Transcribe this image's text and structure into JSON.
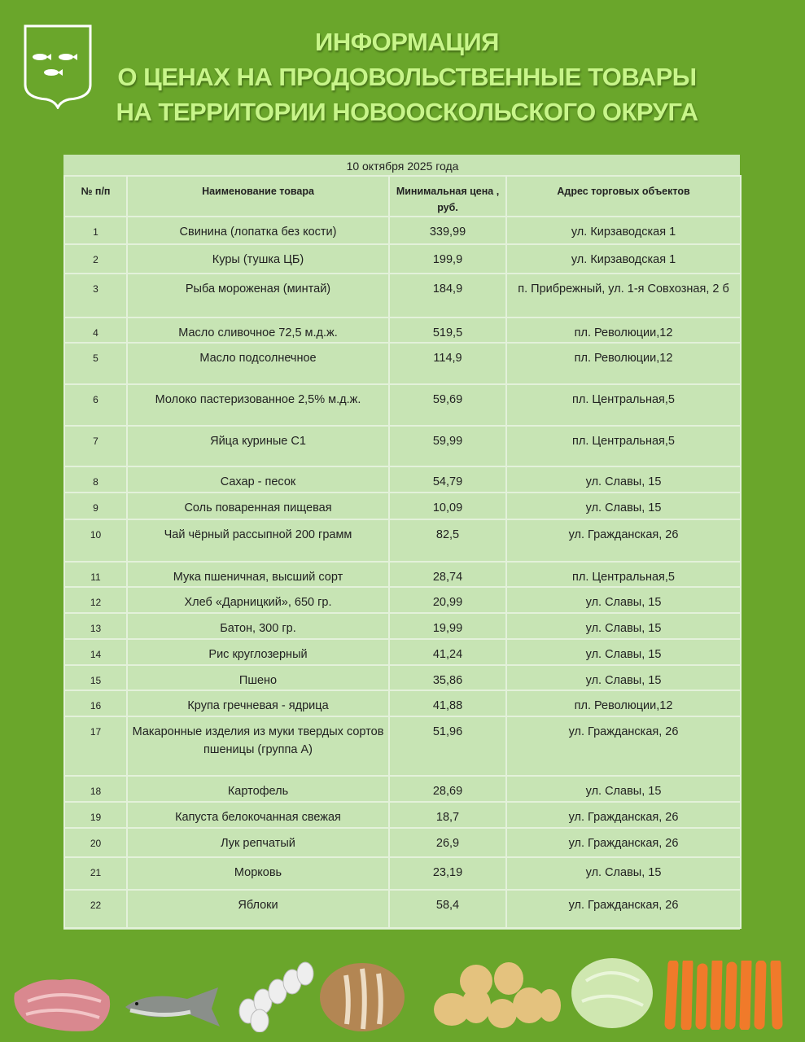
{
  "header": {
    "title_lines": [
      "ИНФОРМАЦИЯ",
      "О ЦЕНАХ НА ПРОДОВОЛЬСТВЕННЫЕ ТОВАРЫ",
      "НА ТЕРРИТОРИИ НОВООСКОЛЬСКОГО ОКРУГА"
    ],
    "emblem": "coat-of-arms-three-fish"
  },
  "table": {
    "date": "10 октября 2025 года",
    "columns": [
      "№ п/п",
      "Наименование товара",
      "Минимальная цена , руб.",
      "Адрес торговых объектов"
    ],
    "rows": [
      {
        "n": "1",
        "name": "Свинина (лопатка без кости)",
        "price": "339,99",
        "address": "ул. Кирзаводская 1"
      },
      {
        "n": "2",
        "name": "Куры (тушка ЦБ)",
        "price": "199,9",
        "address": "ул. Кирзаводская 1"
      },
      {
        "n": "3",
        "name": "Рыба мороженая (минтай)",
        "price": "184,9",
        "address": "п. Прибрежный, ул. 1-я Совхозная, 2 б"
      },
      {
        "n": "4",
        "name": "Масло сливочное 72,5 м.д.ж.",
        "price": "519,5",
        "address": "пл. Революции,12"
      },
      {
        "n": "5",
        "name": "Масло подсолнечное",
        "price": "114,9",
        "address": "пл. Революции,12"
      },
      {
        "n": "6",
        "name": "Молоко пастеризованное 2,5% м.д.ж.",
        "price": "59,69",
        "address": "пл. Центральная,5"
      },
      {
        "n": "7",
        "name": "Яйца куриные С1",
        "price": "59,99",
        "address": "пл. Центральная,5"
      },
      {
        "n": "8",
        "name": "Сахар - песок",
        "price": "54,79",
        "address": "ул. Славы, 15"
      },
      {
        "n": "9",
        "name": "Соль поваренная пищевая",
        "price": "10,09",
        "address": "ул. Славы, 15"
      },
      {
        "n": "10",
        "name": "Чай чёрный рассыпной 200 грамм",
        "price": "82,5",
        "address": "ул. Гражданская, 26"
      },
      {
        "n": "11",
        "name": "Мука пшеничная, высший сорт",
        "price": "28,74",
        "address": "пл. Центральная,5"
      },
      {
        "n": "12",
        "name": "Хлеб «Дарницкий», 650 гр.",
        "price": "20,99",
        "address": "ул. Славы, 15"
      },
      {
        "n": "13",
        "name": "Батон, 300 гр.",
        "price": "19,99",
        "address": "ул. Славы, 15"
      },
      {
        "n": "14",
        "name": "Рис круглозерный",
        "price": "41,24",
        "address": "ул. Славы, 15"
      },
      {
        "n": "15",
        "name": "Пшено",
        "price": "35,86",
        "address": "ул. Славы, 15"
      },
      {
        "n": "16",
        "name": "Крупа гречневая - ядрица",
        "price": "41,88",
        "address": "пл. Революции,12"
      },
      {
        "n": "17",
        "name": "Макаронные изделия из муки твердых сортов пшеницы (группа А)",
        "price": "51,96",
        "address": "ул. Гражданская, 26"
      },
      {
        "n": "18",
        "name": "Картофель",
        "price": "28,69",
        "address": "ул. Славы, 15"
      },
      {
        "n": "19",
        "name": "Капуста белокочанная свежая",
        "price": "18,7",
        "address": "ул. Гражданская, 26"
      },
      {
        "n": "20",
        "name": "Лук репчатый",
        "price": "26,9",
        "address": "ул. Гражданская, 26"
      },
      {
        "n": "21",
        "name": "Морковь",
        "price": "23,19",
        "address": "ул. Славы, 15"
      },
      {
        "n": "22",
        "name": "Яблоки",
        "price": "58,4",
        "address": "ул. Гражданская, 26"
      }
    ]
  },
  "images": [
    "meat",
    "fish",
    "eggs",
    "bread",
    "potatoes",
    "cabbage",
    "carrots"
  ],
  "colors": {
    "background": "#6aa62b",
    "title": "#c8f58a",
    "table": "#c7e4b4"
  }
}
